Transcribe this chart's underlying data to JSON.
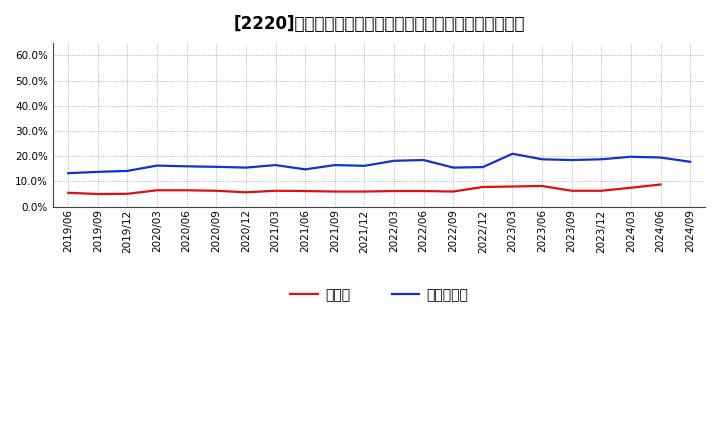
{
  "title": "[2220]　現預金、有利子負債の総資産に対する比率の推移",
  "x_labels": [
    "2019/06",
    "2019/09",
    "2019/12",
    "2020/03",
    "2020/06",
    "2020/09",
    "2020/12",
    "2021/03",
    "2021/06",
    "2021/09",
    "2021/12",
    "2022/03",
    "2022/06",
    "2022/09",
    "2022/12",
    "2023/03",
    "2023/06",
    "2023/09",
    "2023/12",
    "2024/03",
    "2024/06",
    "2024/09"
  ],
  "cash": [
    0.055,
    0.05,
    0.051,
    0.065,
    0.065,
    0.063,
    0.057,
    0.063,
    0.062,
    0.06,
    0.06,
    0.062,
    0.062,
    0.06,
    0.078,
    0.08,
    0.082,
    0.063,
    0.063,
    0.075,
    0.088,
    null
  ],
  "debt": [
    0.133,
    0.138,
    0.142,
    0.163,
    0.16,
    0.158,
    0.155,
    0.165,
    0.148,
    0.165,
    0.162,
    0.182,
    0.185,
    0.155,
    0.157,
    0.21,
    0.188,
    0.185,
    0.188,
    0.198,
    0.195,
    0.178
  ],
  "cash_color": "#dd1111",
  "debt_color": "#1133cc",
  "bg_color": "#ffffff",
  "grid_color": "#888888",
  "ylim": [
    0.0,
    0.65
  ],
  "yticks": [
    0.0,
    0.1,
    0.2,
    0.3,
    0.4,
    0.5,
    0.6
  ],
  "legend_cash": "現預金",
  "legend_debt": "有利子負債",
  "title_fontsize": 12,
  "axis_fontsize": 7.5,
  "legend_fontsize": 10,
  "line_width": 1.6
}
